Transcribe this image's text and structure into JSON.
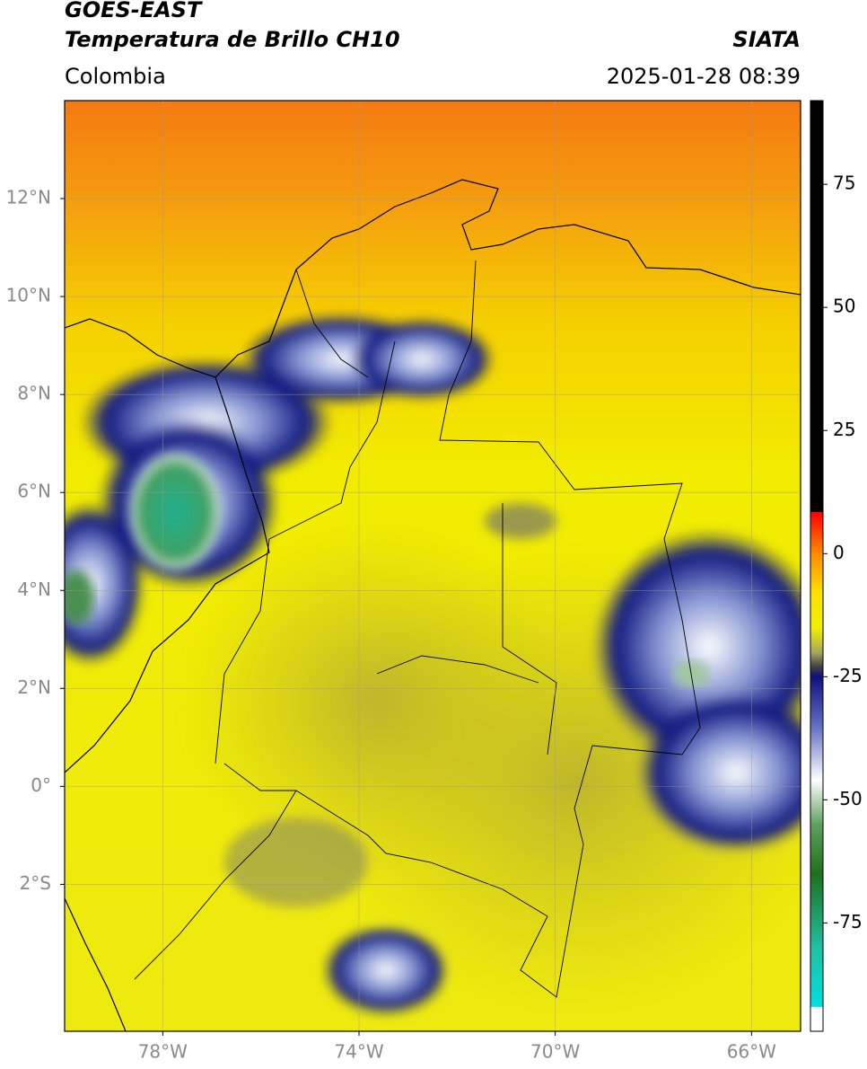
{
  "header": {
    "satellite": "GOES-EAST",
    "product": "Temperatura de Brillo CH10",
    "region": "Colombia",
    "agency": "SIATA",
    "datetime": "2025-01-28 08:39"
  },
  "map": {
    "xlim": [
      -80,
      -65
    ],
    "ylim": [
      -5,
      14
    ],
    "grid": true,
    "xticks": [
      {
        "value": -78,
        "label": "78°W"
      },
      {
        "value": -74,
        "label": "74°W"
      },
      {
        "value": -70,
        "label": "70°W"
      },
      {
        "value": -66,
        "label": "66°W"
      }
    ],
    "yticks": [
      {
        "value": 12,
        "label": "12°N"
      },
      {
        "value": 10,
        "label": "10°N"
      },
      {
        "value": 8,
        "label": "8°N"
      },
      {
        "value": 6,
        "label": "6°N"
      },
      {
        "value": 4,
        "label": "4°N"
      },
      {
        "value": 2,
        "label": "2°N"
      },
      {
        "value": 0,
        "label": "0°"
      },
      {
        "value": -2,
        "label": "2°S"
      }
    ]
  },
  "colorbar": {
    "lim": [
      -97,
      92
    ],
    "ticks": [
      75,
      50,
      25,
      0,
      -25,
      -50,
      -75
    ],
    "stops": [
      {
        "value": 92,
        "color": "#000000"
      },
      {
        "value": 8.5,
        "color": "#000000"
      },
      {
        "value": 8.4,
        "color": "#ff0000"
      },
      {
        "value": 0,
        "color": "#ff8c00"
      },
      {
        "value": -8,
        "color": "#ffe000"
      },
      {
        "value": -15,
        "color": "#f0f000"
      },
      {
        "value": -20,
        "color": "#a8a860"
      },
      {
        "value": -23,
        "color": "#404040"
      },
      {
        "value": -25,
        "color": "#101080"
      },
      {
        "value": -35,
        "color": "#6070c0"
      },
      {
        "value": -46,
        "color": "#ffffff"
      },
      {
        "value": -55,
        "color": "#60a060"
      },
      {
        "value": -65,
        "color": "#207020"
      },
      {
        "value": -80,
        "color": "#20c0a0"
      },
      {
        "value": -92,
        "color": "#00e0e0"
      },
      {
        "value": -92.1,
        "color": "#ffffff"
      },
      {
        "value": -97,
        "color": "#ffffff"
      }
    ]
  }
}
